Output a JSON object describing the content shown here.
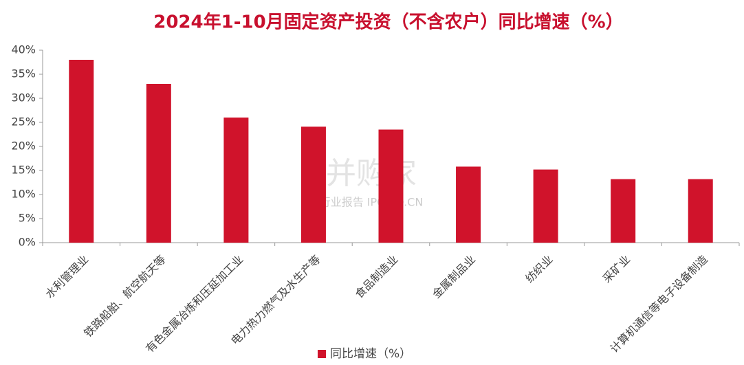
{
  "chart_data": {
    "type": "bar",
    "title": "2024年1-10月固定资产投资（不含农户）同比增速（%）",
    "categories": [
      "水利管理业",
      "铁路船舶、航空航天等",
      "有色金属冶炼和压延加工业",
      "电力热力燃气及水生产等",
      "食品制造业",
      "金属制品业",
      "纺织业",
      "采矿业",
      "计算机通信等电子设备制造"
    ],
    "series": [
      {
        "name": "同比增速（%）",
        "color": "#d0132b",
        "values": [
          38,
          33,
          26,
          24.1,
          23.5,
          15.8,
          15.2,
          13.2,
          13.2
        ]
      }
    ],
    "ylim": [
      0,
      40
    ],
    "yticks": [
      {
        "value": 0,
        "label": "0%"
      },
      {
        "value": 5,
        "label": "5%"
      },
      {
        "value": 10,
        "label": "10%"
      },
      {
        "value": 15,
        "label": "15%"
      },
      {
        "value": 20,
        "label": "20%"
      },
      {
        "value": 25,
        "label": "25%"
      },
      {
        "value": 30,
        "label": "30%"
      },
      {
        "value": 35,
        "label": "35%"
      },
      {
        "value": 40,
        "label": "40%"
      }
    ],
    "grid": false,
    "legend": "bottom",
    "watermark": {
      "brand": "并购家",
      "sub": "行业报告 IPOIPO.CN"
    }
  }
}
